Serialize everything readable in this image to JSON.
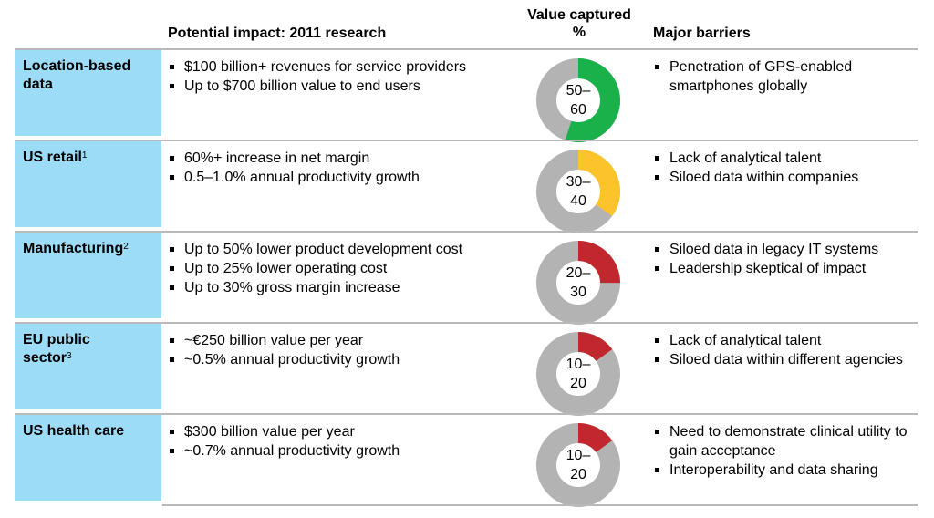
{
  "headers": {
    "impact": "Potential impact: 2011 research",
    "value_line1": "Value captured",
    "value_line2": "%",
    "barriers": "Major barriers"
  },
  "colors": {
    "green": "#1ab04a",
    "yellow": "#fdc32a",
    "red": "#c0282d",
    "ring_gray": "#b3b3b3",
    "label_blue": "#9ddcf6"
  },
  "rows": [
    {
      "label_line1": "Location-based",
      "label_line2": "data",
      "label_sup": "",
      "impact": [
        "$100 billion+ revenues for service providers",
        "Up to $700 billion value to end users"
      ],
      "value_top": "50–",
      "value_bottom": "60",
      "fill_fraction": 0.55,
      "fill_color": "#1ab04a",
      "barriers": [
        "Penetration of GPS-enabled smartphones globally"
      ]
    },
    {
      "label_line1": "US retail",
      "label_line2": "",
      "label_sup": "1",
      "impact": [
        "60%+ increase in net margin",
        "0.5–1.0% annual productivity growth"
      ],
      "value_top": "30–",
      "value_bottom": "40",
      "fill_fraction": 0.35,
      "fill_color": "#fdc32a",
      "barriers": [
        "Lack of analytical talent",
        "Siloed data within companies"
      ]
    },
    {
      "label_line1": "Manufacturing",
      "label_line2": "",
      "label_sup": "2",
      "impact": [
        "Up to 50% lower product development cost",
        "Up to 25% lower operating cost",
        "Up to 30% gross margin increase"
      ],
      "value_top": "20–",
      "value_bottom": "30",
      "fill_fraction": 0.25,
      "fill_color": "#c0282d",
      "barriers": [
        "Siloed data in legacy IT systems",
        "Leadership skeptical of impact"
      ]
    },
    {
      "label_line1": "EU public",
      "label_line2": "sector",
      "label_sup": "3",
      "impact": [
        "~€250 billion value per year",
        "~0.5% annual productivity growth"
      ],
      "value_top": "10–",
      "value_bottom": "20",
      "fill_fraction": 0.15,
      "fill_color": "#c0282d",
      "barriers": [
        "Lack of analytical talent",
        "Siloed data within different agencies"
      ]
    },
    {
      "label_line1": "US health care",
      "label_line2": "",
      "label_sup": "",
      "impact": [
        "$300 billion value per year",
        "~0.7% annual productivity growth"
      ],
      "value_top": "10–",
      "value_bottom": "20",
      "fill_fraction": 0.15,
      "fill_color": "#c0282d",
      "barriers": [
        "Need to demonstrate clinical utility to gain acceptance",
        "Interoperability and data sharing"
      ]
    }
  ]
}
